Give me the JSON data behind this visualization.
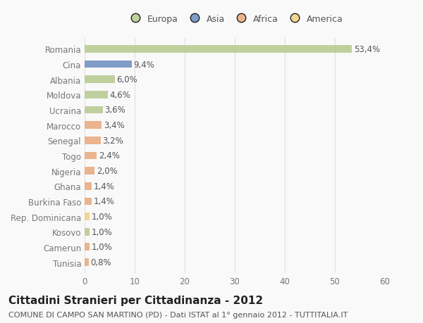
{
  "countries": [
    "Romania",
    "Cina",
    "Albania",
    "Moldova",
    "Ucraina",
    "Marocco",
    "Senegal",
    "Togo",
    "Nigeria",
    "Ghana",
    "Burkina Faso",
    "Rep. Dominicana",
    "Kosovo",
    "Camerun",
    "Tunisia"
  ],
  "values": [
    53.4,
    9.4,
    6.0,
    4.6,
    3.6,
    3.4,
    3.2,
    2.4,
    2.0,
    1.4,
    1.4,
    1.0,
    1.0,
    1.0,
    0.8
  ],
  "labels": [
    "53,4%",
    "9,4%",
    "6,0%",
    "4,6%",
    "3,6%",
    "3,4%",
    "3,2%",
    "2,4%",
    "2,0%",
    "1,4%",
    "1,4%",
    "1,0%",
    "1,0%",
    "1,0%",
    "0,8%"
  ],
  "colors": [
    "#b5c98e",
    "#6b8cbf",
    "#b5c98e",
    "#b5c98e",
    "#b5c98e",
    "#e8a87c",
    "#e8a87c",
    "#e8a87c",
    "#e8a87c",
    "#e8a87c",
    "#e8a87c",
    "#f0d080",
    "#b5c98e",
    "#e8a87c",
    "#e8a87c"
  ],
  "legend_labels": [
    "Europa",
    "Asia",
    "Africa",
    "America"
  ],
  "legend_colors": [
    "#b5c98e",
    "#6b8cbf",
    "#e8a87c",
    "#f0d080"
  ],
  "title": "Cittadini Stranieri per Cittadinanza - 2012",
  "subtitle": "COMUNE DI CAMPO SAN MARTINO (PD) - Dati ISTAT al 1° gennaio 2012 - TUTTITALIA.IT",
  "xlim": [
    0,
    60
  ],
  "xticks": [
    0,
    10,
    20,
    30,
    40,
    50,
    60
  ],
  "background_color": "#f9f9f9",
  "grid_color": "#e0e0e0",
  "bar_height": 0.5,
  "title_fontsize": 11,
  "subtitle_fontsize": 8,
  "tick_fontsize": 8.5,
  "label_fontsize": 8.5,
  "legend_fontsize": 9
}
